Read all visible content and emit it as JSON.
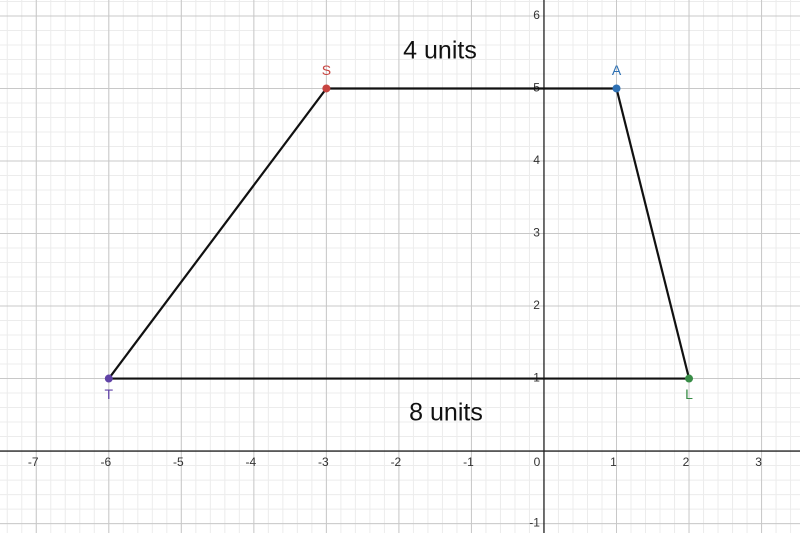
{
  "chart_data": {
    "type": "polygon",
    "points": [
      {
        "label": "T",
        "x": -6,
        "y": 1,
        "color": "#6042a6"
      },
      {
        "label": "S",
        "x": -3,
        "y": 5,
        "color": "#c74440"
      },
      {
        "label": "A",
        "x": 1,
        "y": 5,
        "color": "#2d70b3"
      },
      {
        "label": "L",
        "x": 2,
        "y": 1,
        "color": "#388c46"
      }
    ],
    "annotations": [
      "4 units",
      "8 units"
    ],
    "xlim": [
      -7.5,
      3.53
    ],
    "ylim": [
      -1.13,
      6.22
    ],
    "xticks": [
      -7,
      -6,
      -5,
      -4,
      -3,
      -2,
      -1,
      0,
      1,
      2,
      3
    ],
    "yticks": [
      -1,
      1,
      2,
      3,
      4,
      5,
      6
    ],
    "grid": true,
    "minor_grid_subdivisions": 5
  }
}
